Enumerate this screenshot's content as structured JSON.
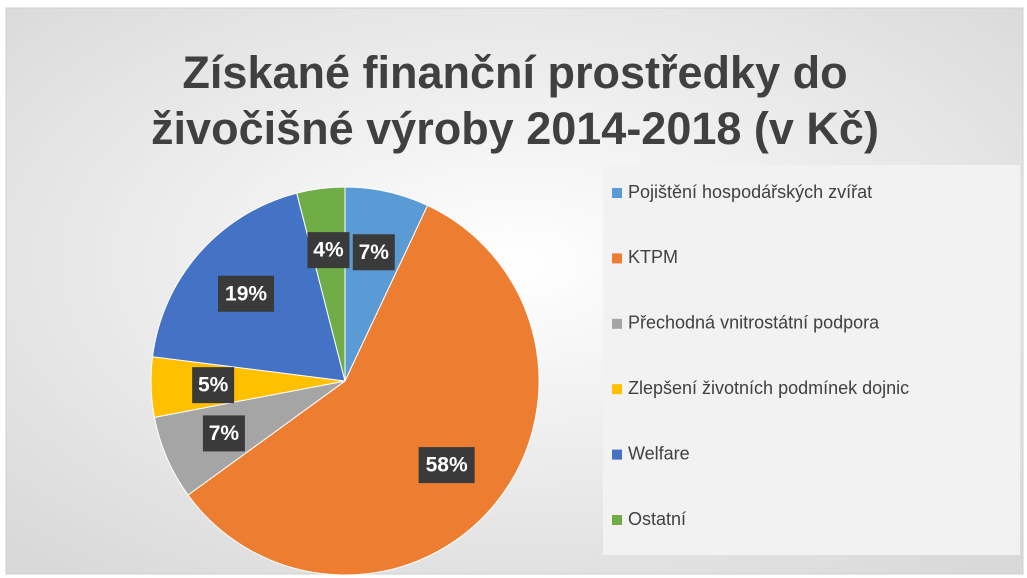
{
  "chart_data": {
    "type": "pie",
    "title": "Získané finanční prostředky do živočišné výroby 2014-2018 (v Kč)",
    "title_lines": [
      "Získané finanční prostředky do",
      "živočišné výroby 2014-2018 (v Kč)"
    ],
    "categories": [
      "Pojištění hospodářských zvířat",
      "KTPM",
      "Přechodná vnitrostátní podpora",
      "Zlepšení životních podmínek dojnic",
      "Welfare",
      "Ostatní"
    ],
    "values": [
      7,
      58,
      7,
      5,
      19,
      4
    ],
    "value_labels": [
      "7%",
      "58%",
      "7%",
      "5%",
      "19%",
      "4%"
    ],
    "colors": [
      "#5b9bd5",
      "#ed7d31",
      "#a5a5a5",
      "#ffc000",
      "#4472c4",
      "#70ad47"
    ],
    "legend": "right"
  }
}
